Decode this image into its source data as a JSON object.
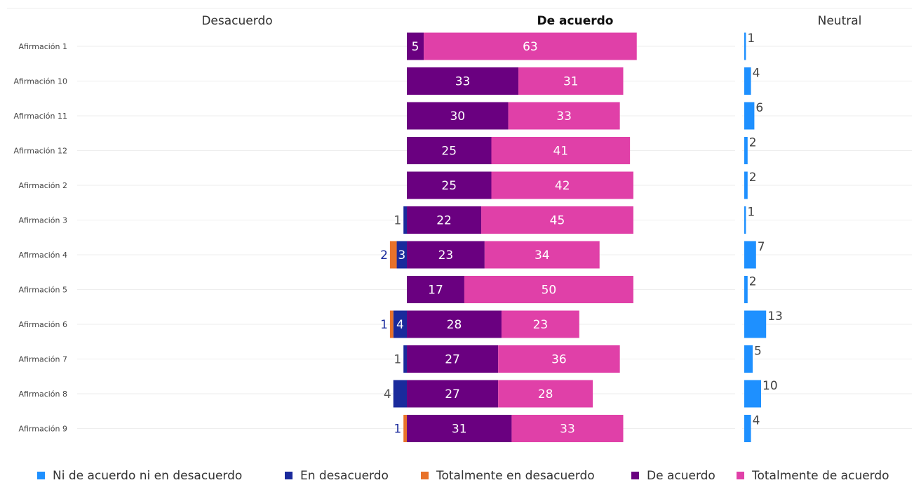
{
  "headers": {
    "disagree": "Desacuerdo",
    "agree": "De acuerdo",
    "neutral": "Neutral"
  },
  "chart_data": {
    "type": "bar",
    "orientation": "horizontal",
    "stacked": "diverging",
    "categories": [
      "Afirmación 1",
      "Afirmación 10",
      "Afirmación 11",
      "Afirmación 12",
      "Afirmación 2",
      "Afirmación 3",
      "Afirmación 4",
      "Afirmación 5",
      "Afirmación 6",
      "Afirmación 7",
      "Afirmación 8",
      "Afirmación 9"
    ],
    "series": [
      {
        "key": "neutral",
        "name": "Ni de acuerdo ni en desacuerdo",
        "color": "#1E90FF",
        "values": [
          1,
          4,
          6,
          2,
          2,
          1,
          7,
          2,
          13,
          5,
          10,
          4
        ]
      },
      {
        "key": "disagree",
        "name": "En desacuerdo",
        "color": "#1A2A9C",
        "values": [
          0,
          0,
          0,
          0,
          0,
          1,
          3,
          0,
          4,
          1,
          4,
          0
        ]
      },
      {
        "key": "strong_disagree",
        "name": "Totalmente en desacuerdo",
        "color": "#E8722A",
        "values": [
          0,
          0,
          0,
          0,
          0,
          0,
          2,
          0,
          1,
          0,
          0,
          1
        ]
      },
      {
        "key": "agree",
        "name": "De acuerdo",
        "color": "#6A0080",
        "values": [
          5,
          33,
          30,
          25,
          25,
          22,
          23,
          17,
          28,
          27,
          27,
          31
        ]
      },
      {
        "key": "strong_agree",
        "name": "Totalmente de acuerdo",
        "color": "#E040A8",
        "values": [
          63,
          31,
          33,
          41,
          42,
          45,
          34,
          50,
          23,
          36,
          28,
          33
        ]
      }
    ],
    "grid": true,
    "legend_position": "bottom"
  }
}
